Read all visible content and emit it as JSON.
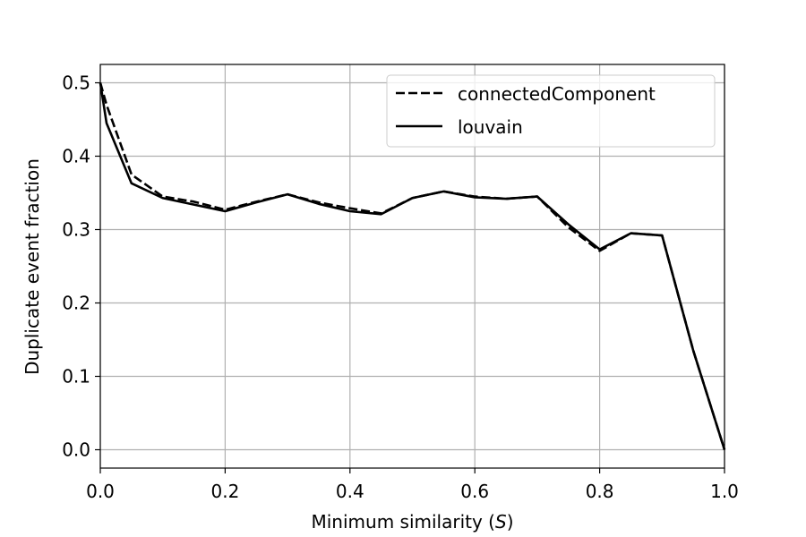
{
  "chart_data": {
    "type": "line",
    "title": "",
    "xlabel": "Minimum similarity (",
    "xlabel_symbol": "S",
    "xlabel_close": ")",
    "ylabel": "Duplicate event fraction",
    "xlim": [
      0.0,
      1.0
    ],
    "ylim": [
      -0.025,
      0.525
    ],
    "grid": true,
    "legend_position": "top-right",
    "x_ticks": [
      "0.0",
      "0.2",
      "0.4",
      "0.6",
      "0.8",
      "1.0"
    ],
    "y_ticks": [
      "0.0",
      "0.1",
      "0.2",
      "0.3",
      "0.4",
      "0.5"
    ],
    "series": [
      {
        "name": "connectedComponent",
        "style": "dashed",
        "color": "#000000",
        "x": [
          0.0,
          0.01,
          0.05,
          0.1,
          0.15,
          0.2,
          0.25,
          0.3,
          0.35,
          0.4,
          0.45,
          0.5,
          0.55,
          0.6,
          0.65,
          0.7,
          0.75,
          0.8,
          0.85,
          0.9,
          0.95,
          1.0
        ],
        "y": [
          0.5,
          0.47,
          0.375,
          0.345,
          0.338,
          0.327,
          0.338,
          0.348,
          0.337,
          0.329,
          0.322,
          0.343,
          0.352,
          0.345,
          0.342,
          0.345,
          0.303,
          0.271,
          0.295,
          0.292,
          0.135,
          0.0
        ]
      },
      {
        "name": "louvain",
        "style": "solid",
        "color": "#000000",
        "x": [
          0.0,
          0.01,
          0.05,
          0.1,
          0.15,
          0.2,
          0.25,
          0.3,
          0.35,
          0.4,
          0.45,
          0.5,
          0.55,
          0.6,
          0.65,
          0.7,
          0.75,
          0.8,
          0.85,
          0.9,
          0.95,
          1.0
        ],
        "y": [
          0.5,
          0.445,
          0.363,
          0.343,
          0.334,
          0.325,
          0.337,
          0.348,
          0.335,
          0.325,
          0.321,
          0.343,
          0.352,
          0.344,
          0.342,
          0.345,
          0.307,
          0.273,
          0.295,
          0.292,
          0.135,
          0.0
        ]
      }
    ]
  }
}
